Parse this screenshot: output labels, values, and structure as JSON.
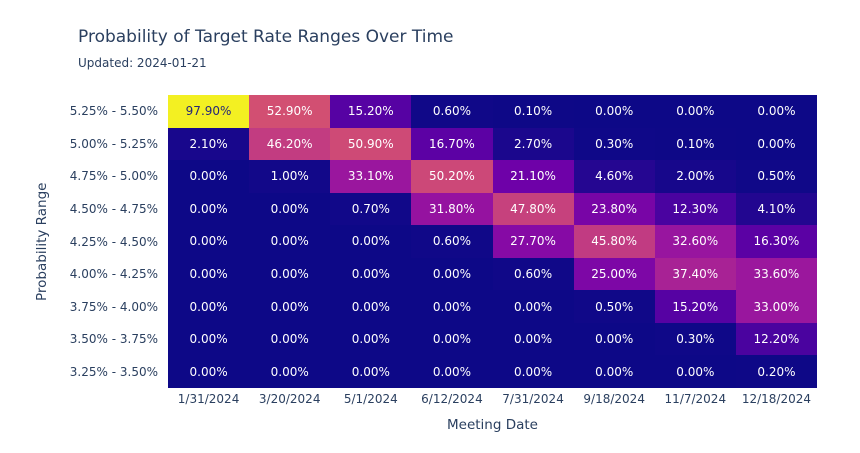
{
  "header": {
    "title": "Probability of Target Rate Ranges Over Time",
    "subtitle": "Updated: 2024-01-21"
  },
  "chart_data": {
    "type": "heatmap",
    "title": "Probability of Target Rate Ranges Over Time",
    "subtitle": "Updated: 2024-01-21",
    "xlabel": "Meeting Date",
    "ylabel": "Probability Range",
    "x_categories": [
      "1/31/2024",
      "3/20/2024",
      "5/1/2024",
      "6/12/2024",
      "7/31/2024",
      "9/18/2024",
      "11/7/2024",
      "12/18/2024"
    ],
    "y_categories": [
      "5.25% - 5.50%",
      "5.00% - 5.25%",
      "4.75% - 5.00%",
      "4.50% - 4.75%",
      "4.25% - 4.50%",
      "4.00% - 4.25%",
      "3.75% - 4.00%",
      "3.50% - 3.75%",
      "3.25% - 3.50%"
    ],
    "values_percent": [
      [
        97.9,
        52.9,
        15.2,
        0.6,
        0.1,
        0.0,
        0.0,
        0.0
      ],
      [
        2.1,
        46.2,
        50.9,
        16.7,
        2.7,
        0.3,
        0.1,
        0.0
      ],
      [
        0.0,
        1.0,
        33.1,
        50.2,
        21.1,
        4.6,
        2.0,
        0.5
      ],
      [
        0.0,
        0.0,
        0.7,
        31.8,
        47.8,
        23.8,
        12.3,
        4.1
      ],
      [
        0.0,
        0.0,
        0.0,
        0.6,
        27.7,
        45.8,
        32.6,
        16.3
      ],
      [
        0.0,
        0.0,
        0.0,
        0.0,
        0.6,
        25.0,
        37.4,
        33.6
      ],
      [
        0.0,
        0.0,
        0.0,
        0.0,
        0.0,
        0.5,
        15.2,
        33.0
      ],
      [
        0.0,
        0.0,
        0.0,
        0.0,
        0.0,
        0.0,
        0.3,
        12.2
      ],
      [
        0.0,
        0.0,
        0.0,
        0.0,
        0.0,
        0.0,
        0.0,
        0.2
      ]
    ],
    "cell_text_format": "0.00%",
    "grid": false,
    "legend": "none",
    "colorscale": {
      "name": "plasma",
      "domain": [
        0,
        100
      ],
      "stops": [
        "#0d0887",
        "#41049d",
        "#6a00a8",
        "#8f0da4",
        "#b12a90",
        "#cc4778",
        "#e16462",
        "#f2844b",
        "#fca636",
        "#fcce25",
        "#f0f921"
      ]
    },
    "colors": {
      "background": "#ffffff",
      "axis_text": "#2a3f5f",
      "title_text": "#2a3f5f",
      "cell_text_light": "#ffffff",
      "cell_text_dark": "#262678"
    }
  }
}
